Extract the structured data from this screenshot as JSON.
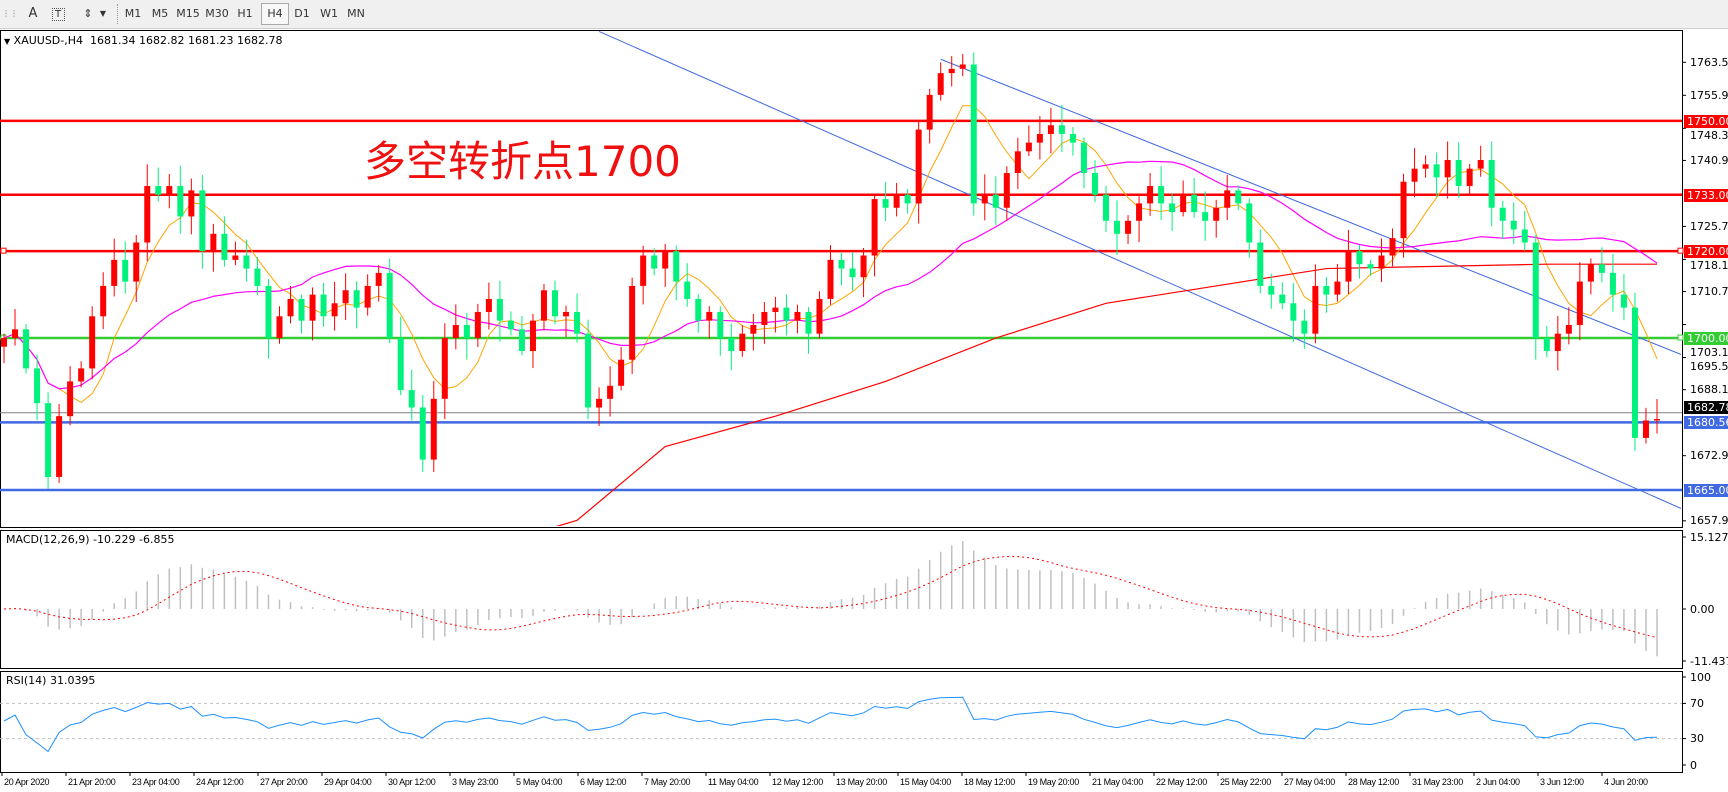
{
  "toolbar": {
    "icons": [
      "grid-icon",
      "text-icon",
      "text-label-icon",
      "arrows-icon"
    ],
    "text_icon": "A",
    "timeframes": [
      "M1",
      "M5",
      "M15",
      "M30",
      "H1",
      "H4",
      "D1",
      "W1",
      "MN"
    ],
    "active_timeframe": "H4"
  },
  "header": {
    "symbol": "XAUUSD-,H4",
    "ohlc": "1681.34 1682.82 1681.23 1682.78"
  },
  "annotation": "多空转折点1700",
  "colors": {
    "bull": "#ff0000",
    "bear": "#00f27c",
    "ma_fast": "#ffa500",
    "ma_mid": "#ff00ff",
    "ma_slow": "#ff0000",
    "trendline": "#4169e1",
    "macd_hist": "#c0c0c0",
    "macd_signal": "#ff0000",
    "rsi": "#1e90ff"
  },
  "chart_data": {
    "type": "candlestick",
    "symbol": "XAUUSD-",
    "timeframe": "H4",
    "ylim": [
      1657.9,
      1763.5
    ],
    "price_ticks": [
      "1763.50",
      "1755.90",
      "1748.30",
      "1740.90",
      "1725.70",
      "1718.10",
      "1710.70",
      "1703.10",
      "1695.50",
      "1688.10",
      "1672.90",
      "1657.90"
    ],
    "closes": [
      1700,
      1702,
      1693,
      1685,
      1668,
      1682,
      1690,
      1693,
      1705,
      1712,
      1718,
      1713,
      1722,
      1735,
      1733,
      1735,
      1728,
      1734,
      1720,
      1724,
      1718,
      1719,
      1716,
      1712,
      1700,
      1705,
      1709,
      1704,
      1710,
      1705,
      1708,
      1711,
      1707,
      1712,
      1715,
      1700,
      1688,
      1684,
      1672,
      1686,
      1700,
      1703,
      1700,
      1706,
      1709,
      1704,
      1702,
      1697,
      1704,
      1711,
      1705,
      1706,
      1701,
      1684,
      1686,
      1689,
      1695,
      1712,
      1719,
      1716,
      1720,
      1713,
      1709,
      1704,
      1706,
      1700,
      1697,
      1701,
      1703,
      1706,
      1707,
      1704,
      1706,
      1701,
      1709,
      1718,
      1716,
      1714,
      1719,
      1732,
      1730,
      1733,
      1731,
      1748,
      1756,
      1761,
      1762,
      1763,
      1731,
      1733,
      1730,
      1738,
      1743,
      1745,
      1747,
      1749,
      1747,
      1745,
      1738,
      1733,
      1727,
      1724,
      1727,
      1731,
      1735,
      1731,
      1729,
      1733,
      1729,
      1727,
      1730,
      1734,
      1731,
      1722,
      1712,
      1710,
      1708,
      1704,
      1701,
      1712,
      1710,
      1713,
      1720,
      1717,
      1716,
      1719,
      1723,
      1736,
      1739,
      1740,
      1737,
      1741,
      1735,
      1739,
      1741,
      1730,
      1727,
      1725,
      1722,
      1700,
      1697,
      1701,
      1703,
      1713,
      1717,
      1715,
      1710,
      1707,
      1677,
      1681,
      1681.34
    ],
    "last_close": 1682.78,
    "slow_ma": [
      [
        48,
        1655
      ],
      [
        52,
        1658
      ],
      [
        60,
        1675
      ],
      [
        70,
        1682
      ],
      [
        80,
        1690
      ],
      [
        90,
        1700
      ],
      [
        100,
        1708
      ],
      [
        110,
        1712
      ],
      [
        120,
        1716
      ],
      [
        130,
        1716.5
      ],
      [
        140,
        1717
      ],
      [
        150,
        1717
      ]
    ],
    "horizontal_levels": [
      {
        "price": 1750.0,
        "label": "1750.00",
        "color": "#ff0000"
      },
      {
        "price": 1733.0,
        "label": "1733.00",
        "color": "#ff0000"
      },
      {
        "price": 1720.0,
        "label": "1720.00",
        "color": "#ff0000"
      },
      {
        "price": 1700.0,
        "label": "1700.00",
        "color": "#32cd32"
      },
      {
        "price": 1680.56,
        "label": "1680.56",
        "color": "#4169e1"
      },
      {
        "price": 1665.0,
        "label": "1665.00",
        "color": "#4169e1"
      }
    ],
    "bid": {
      "price": 1682.78,
      "label": "1682.78"
    },
    "trendlines": [
      {
        "from": [
          85,
          1764.2
        ],
        "to": [
          152.5,
          1695.9
        ]
      },
      {
        "from": [
          54,
          1770.6
        ],
        "to": [
          152.5,
          1660.4
        ]
      }
    ],
    "time_labels": [
      "20 Apr 2020",
      "21 Apr 20:00",
      "23 Apr 04:00",
      "24 Apr 12:00",
      "27 Apr 20:00",
      "29 Apr 04:00",
      "30 Apr 12:00",
      "3 May 23:00",
      "5 May 04:00",
      "6 May 12:00",
      "7 May 20:00",
      "11 May 04:00",
      "12 May 12:00",
      "13 May 20:00",
      "15 May 04:00",
      "18 May 12:00",
      "19 May 20:00",
      "21 May 04:00",
      "22 May 12:00",
      "25 May 22:00",
      "27 May 04:00",
      "28 May 12:00",
      "31 May 23:00",
      "2 Jun 04:00",
      "3 Jun 12:00",
      "4 Jun 20:00"
    ],
    "macd": {
      "label": "MACD(12,26,9) -10.229 -6.855",
      "ylim": [
        -11.437,
        15.127
      ],
      "ticks": [
        "15.127",
        "0.00",
        "-11.437"
      ]
    },
    "rsi": {
      "label": "RSI(14) 31.0395",
      "ticks": [
        "100",
        "70",
        "30",
        "0"
      ],
      "levels": [
        70,
        30
      ]
    }
  }
}
